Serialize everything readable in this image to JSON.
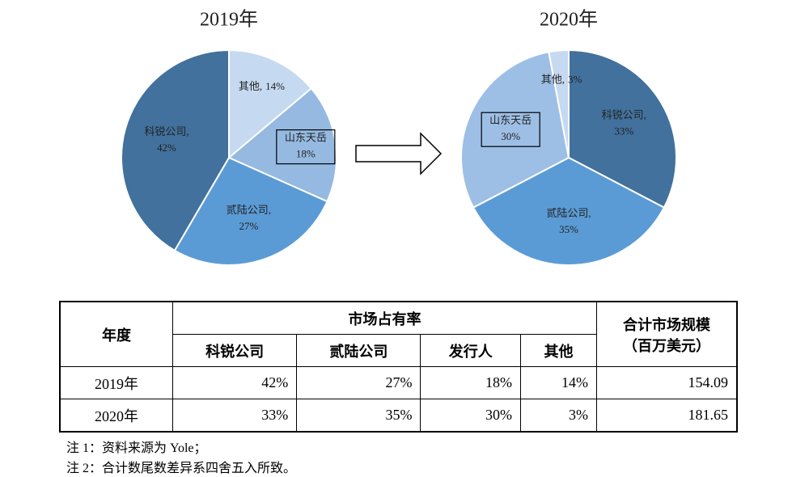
{
  "chart_data": [
    {
      "type": "pie",
      "title": "2019年",
      "categories": [
        "其他,",
        "山东天岳",
        "贰陆公司,",
        "科锐公司,"
      ],
      "values": [
        14,
        18,
        27,
        42
      ],
      "value_labels": [
        "14%",
        "18%",
        "27%",
        "42%"
      ],
      "colors": [
        "#c5d9f1",
        "#95b9e1",
        "#5b9bd5",
        "#41719c"
      ],
      "label_boxed": [
        false,
        true,
        false,
        false
      ]
    },
    {
      "type": "pie",
      "title": "2020年",
      "categories": [
        "科锐公司,",
        "贰陆公司,",
        "山东天岳",
        "其他,"
      ],
      "values": [
        33,
        35,
        30,
        3
      ],
      "value_labels": [
        "33%",
        "35%",
        "30%",
        "3%"
      ],
      "colors": [
        "#41719c",
        "#5b9bd5",
        "#9dbfe5",
        "#c5d9f1"
      ],
      "label_boxed": [
        false,
        false,
        true,
        false
      ]
    }
  ],
  "table": {
    "header": {
      "year": "年度",
      "share": "市场占有率",
      "total": [
        "合计市场规模",
        "（百万美元）"
      ],
      "companies": [
        "科锐公司",
        "贰陆公司",
        "发行人",
        "其他"
      ]
    },
    "rows": [
      [
        "2019年",
        "42%",
        "27%",
        "18%",
        "14%",
        "154.09"
      ],
      [
        "2020年",
        "33%",
        "35%",
        "30%",
        "3%",
        "181.65"
      ]
    ]
  },
  "notes": [
    "注 1：资料来源为 Yole；",
    "注 2：合计数尾数差异系四舍五入所致。"
  ]
}
